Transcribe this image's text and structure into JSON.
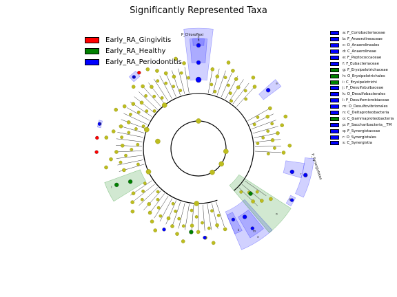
{
  "title": "Significantly Represented Taxa",
  "legend": [
    {
      "label": "Early_RA_Gingivitis",
      "color": "#ff0000"
    },
    {
      "label": "Early_RA_Healthy",
      "color": "#008000"
    },
    {
      "label": "Early_RA_Periodontitis",
      "color": "#0000ff"
    }
  ],
  "key": [
    {
      "label": "a: F_Coriobacteriaceae",
      "color": "#0000ff"
    },
    {
      "label": "b: F_Anaerolineaceae",
      "color": "#0000ff"
    },
    {
      "label": "c: O_Anaerolineales",
      "color": "#0000ff"
    },
    {
      "label": "d: C_Anaerolineae",
      "color": "#0000ff"
    },
    {
      "label": "e: F_Peptococcaceae",
      "color": "#0000ff"
    },
    {
      "label": "f: F_Eubacteriaceae",
      "color": "#0000ff"
    },
    {
      "label": "g: F_Erysipelotrichaceae",
      "color": "#008000"
    },
    {
      "label": "h: O_Erysipelotrichales",
      "color": "#008000"
    },
    {
      "label": "i: C_Erysipelotrichi",
      "color": "#008000"
    },
    {
      "label": "j: F_Desulfobulbaceae",
      "color": "#0000ff"
    },
    {
      "label": "k: O_Desulfobacterales",
      "color": "#0000ff"
    },
    {
      "label": "l: F_Desulfomicrobiaceae",
      "color": "#0000ff"
    },
    {
      "label": "m: O_Desulfovibrionales",
      "color": "#0000ff"
    },
    {
      "label": "n: C_Deltaproteobacteria",
      "color": "#0000ff"
    },
    {
      "label": "o: C_Gammaproteobacteria",
      "color": "#008000"
    },
    {
      "label": "p: F_Saccharibacteria__TM",
      "color": "#0000ff"
    },
    {
      "label": "q: F_Synergistaceae",
      "color": "#0000ff"
    },
    {
      "label": "r: O_Synergistales",
      "color": "#0000ff"
    },
    {
      "label": "s: C_Synergistia",
      "color": "#0000ff"
    }
  ],
  "clade_labels": {
    "chloroflexi": "P_Chloroflexi",
    "synergistetes": "P_Synergistetes"
  },
  "colors": {
    "node": "#bdbd1f",
    "node_stroke": "#777700",
    "branch": "#000000",
    "gingivitis": "#ff0000",
    "healthy": "#008000",
    "periodontitis": "#0000ff"
  }
}
